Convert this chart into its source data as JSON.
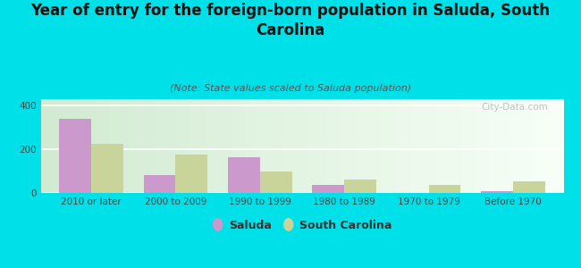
{
  "title": "Year of entry for the foreign-born population in Saluda, South\nCarolina",
  "subtitle": "(Note: State values scaled to Saluda population)",
  "categories": [
    "2010 or later",
    "2000 to 2009",
    "1990 to 1999",
    "1980 to 1989",
    "1970 to 1979",
    "Before 1970"
  ],
  "saluda_values": [
    340,
    80,
    163,
    35,
    0,
    8
  ],
  "sc_values": [
    225,
    178,
    100,
    60,
    35,
    52
  ],
  "saluda_color": "#cc99cc",
  "sc_color": "#c8d49a",
  "background_color": "#00e0e8",
  "ylim": [
    0,
    430
  ],
  "yticks": [
    0,
    200,
    400
  ],
  "bar_width": 0.38,
  "title_fontsize": 12,
  "subtitle_fontsize": 8,
  "tick_fontsize": 7.5,
  "legend_fontsize": 9,
  "title_color": "#111111",
  "subtitle_color": "#555555",
  "tick_color": "#444444",
  "watermark": "City-Data.com"
}
